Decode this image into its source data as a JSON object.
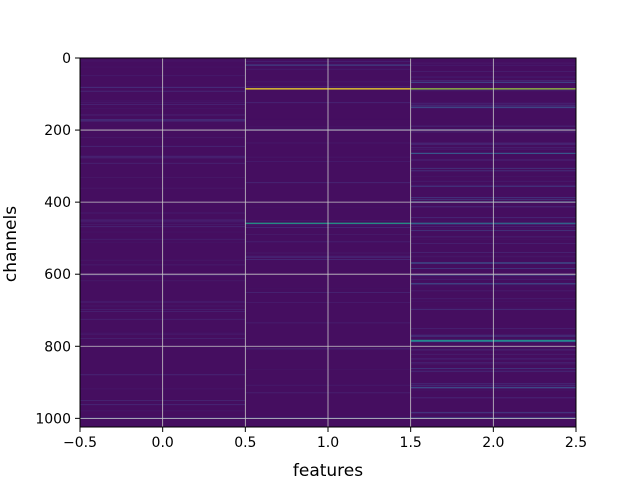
{
  "chart_data": {
    "type": "heatmap",
    "title": "",
    "xlabel": "features",
    "ylabel": "channels",
    "xlim": [
      -0.5,
      2.5
    ],
    "ylim": [
      1024,
      0
    ],
    "y_inverted": true,
    "grid": true,
    "colormap": "viridis",
    "n_features": 3,
    "n_channels": 1024,
    "x_ticks": [
      "−0.5",
      "0.0",
      "0.5",
      "1.0",
      "1.5",
      "2.0",
      "2.5"
    ],
    "x_tick_values": [
      -0.5,
      0.0,
      0.5,
      1.0,
      1.5,
      2.0,
      2.5
    ],
    "y_ticks": [
      "0",
      "200",
      "400",
      "600",
      "800",
      "1000"
    ],
    "y_tick_values": [
      0,
      200,
      400,
      600,
      800,
      1000
    ],
    "background_level": 0.04,
    "highlights": [
      {
        "feature": 1,
        "channel": 84,
        "value": 1.0
      },
      {
        "feature": 2,
        "channel": 84,
        "value": 0.85
      },
      {
        "feature": 1,
        "channel": 457,
        "value": 0.55
      },
      {
        "feature": 2,
        "channel": 457,
        "value": 0.35
      },
      {
        "feature": 2,
        "channel": 782,
        "value": 0.5
      },
      {
        "feature": 2,
        "channel": 785,
        "value": 0.35
      },
      {
        "feature": 2,
        "channel": 198,
        "value": 0.25
      },
      {
        "feature": 2,
        "channel": 263,
        "value": 0.28
      },
      {
        "feature": 2,
        "channel": 398,
        "value": 0.3
      },
      {
        "feature": 2,
        "channel": 567,
        "value": 0.25
      },
      {
        "feature": 2,
        "channel": 625,
        "value": 0.22
      },
      {
        "feature": 2,
        "channel": 913,
        "value": 0.22
      },
      {
        "feature": 2,
        "channel": 998,
        "value": 0.25
      },
      {
        "feature": 1,
        "channel": 198,
        "value": 0.2
      },
      {
        "feature": 1,
        "channel": 998,
        "value": 0.22
      },
      {
        "feature": 1,
        "channel": 18,
        "value": 0.2
      },
      {
        "feature": 0,
        "channel": 998,
        "value": 0.2
      },
      {
        "feature": 0,
        "channel": 170,
        "value": 0.15
      },
      {
        "feature": 2,
        "channel": 135,
        "value": 0.22
      },
      {
        "feature": 2,
        "channel": 66,
        "value": 0.2
      }
    ]
  }
}
